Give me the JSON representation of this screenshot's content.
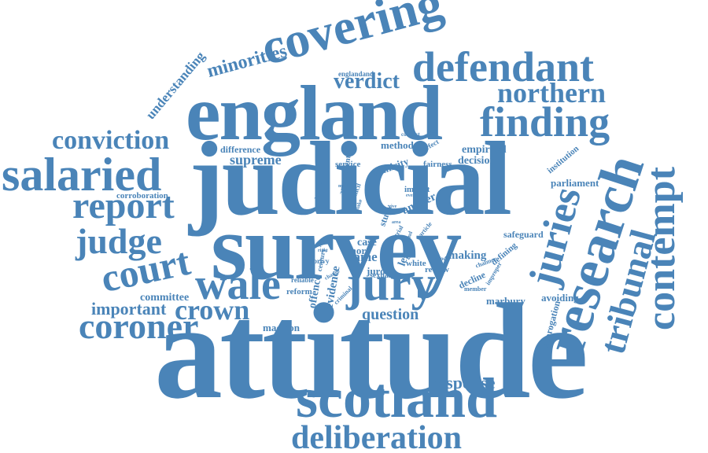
{
  "color": "#4a84b8",
  "words": {
    "attitude": "attitude",
    "survey": "survey",
    "judicial": "judicial",
    "england": "england",
    "scotland": "scotland",
    "covering": "covering",
    "research": "research",
    "defendant": "defendant",
    "finding": "finding",
    "contempt": "contempt",
    "salaried": "salaried",
    "jury": "jury",
    "juries": "juries",
    "tribunal": "tribunal",
    "wale": "wale",
    "court": "court",
    "report": "report",
    "coroner": "coroner",
    "judge": "judge",
    "deliberation": "deliberation",
    "northern": "northern",
    "conviction": "conviction",
    "crown": "crown",
    "verdict": "verdict",
    "minorities": "minorities",
    "important": "important",
    "response": "response",
    "supreme": "supreme",
    "question": "question",
    "understanding": "understanding",
    "committee": "committee",
    "madison": "madison",
    "bame": "bame",
    "making": "making",
    "parliament": "parliament",
    "decision": "decision",
    "empirical": "empirical",
    "method": "method",
    "fairness": "fairness",
    "difference": "difference",
    "corroboration": "corroboration",
    "avoiding": "avoiding",
    "marbury": "marbury",
    "prorogation": "prorogation",
    "institution": "institution",
    "safeguard": "safeguard",
    "evidence": "evidence",
    "offence": "offence",
    "juror": "juror",
    "case": "case",
    "more": "more",
    "white": "white",
    "answer": "answer",
    "ethnicity": "ethnicity",
    "legal": "legal",
    "study": "study",
    "defining": "defining",
    "review": "review",
    "impact": "impact",
    "decline": "decline",
    "service": "service",
    "amendment": "amendment",
    "reform": "reform",
    "sexual": "sexual",
    "englandand": "englandand",
    "perfect": "perfect",
    "reliable": "reliable",
    "century": "century",
    "criminal": "criminal",
    "privy": "privy",
    "council": "council",
    "leverick": "leverick",
    "member": "member",
    "improper": "improper",
    "chalmer": "chalmer",
    "conduct": "conduct",
    "article": "article",
    "change": "change",
    "group": "group",
    "period": "period",
    "make": "make",
    "trial": "trial",
    "event": "event",
    "attend": "attend",
    "rape": "rape",
    "right": "right",
    "area": "area",
    "mock": "mock",
    "give": "give"
  }
}
